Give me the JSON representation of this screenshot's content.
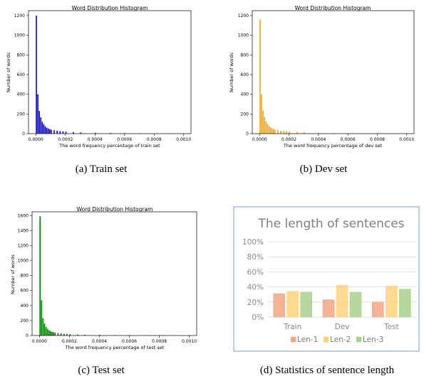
{
  "histograms": [
    {
      "title": "Word Distribution Histogram",
      "xlabel": "The word frequency percentage of train set",
      "ylabel": "Number of words",
      "caption": "(a)  Train set",
      "color": "#0000ff",
      "xticks": [
        "0.0000",
        "0.0002",
        "0.0004",
        "0.0006",
        "0.0008",
        "0.0010"
      ],
      "yticks": [
        "0",
        "200",
        "400",
        "600",
        "800",
        "1000",
        "1200"
      ]
    },
    {
      "title": "Word Distribution Histogram",
      "xlabel": "The word frequency percentage of dev set",
      "ylabel": "Number of words",
      "caption": "(b)  Dev set",
      "color": "#ffa500",
      "xticks": [
        "0.0000",
        "0.0002",
        "0.0004",
        "0.0006",
        "0.0008",
        "0.0010"
      ],
      "yticks": [
        "0",
        "200",
        "400",
        "600",
        "800",
        "1000",
        "1200"
      ]
    },
    {
      "title": "Word Distribution Histogram",
      "xlabel": "The word frequency percentage of test set",
      "ylabel": "Number of words",
      "caption": "(c)  Test set",
      "color": "#008000",
      "xticks": [
        "0.0000",
        "0.0002",
        "0.0004",
        "0.0006",
        "0.0008",
        "0.0010"
      ],
      "yticks": [
        "0",
        "200",
        "400",
        "600",
        "800",
        "1000",
        "1200",
        "1400",
        "1600"
      ]
    }
  ],
  "bar_panel": {
    "title": "The length of sentences",
    "caption": "(d)  Statistics of sentence length",
    "yticks": [
      "0%",
      "20%",
      "40%",
      "60%",
      "80%",
      "100%"
    ],
    "border_color": "#8faadc",
    "legend": [
      "Len-1",
      "Len-2",
      "Len-3"
    ]
  },
  "chart_data": [
    {
      "type": "bar",
      "title": "Word Distribution Histogram",
      "xlabel": "The word frequency percentage of train set",
      "ylabel": "Number of words",
      "xlim": [
        0,
        0.001
      ],
      "ylim": [
        0,
        1250
      ],
      "bin_width": 5e-06,
      "x": [
        0.0,
        1e-05,
        2e-05,
        3e-05,
        4e-05,
        5e-05,
        6e-05,
        7e-05,
        8e-05,
        9e-05,
        0.0001,
        0.00012,
        0.00014,
        0.00016,
        0.00018,
        0.0002,
        0.00025,
        0.0003,
        0.0004,
        0.0005,
        0.0006,
        0.0007,
        0.0008,
        0.0009,
        0.001
      ],
      "values": [
        1200,
        400,
        230,
        165,
        120,
        95,
        75,
        60,
        52,
        45,
        40,
        35,
        30,
        26,
        23,
        20,
        16,
        12,
        9,
        7,
        5,
        4,
        3,
        3,
        2
      ]
    },
    {
      "type": "bar",
      "title": "Word Distribution Histogram",
      "xlabel": "The word frequency percentage of dev set",
      "ylabel": "Number of words",
      "xlim": [
        0,
        0.001
      ],
      "ylim": [
        0,
        1250
      ],
      "bin_width": 5e-06,
      "x": [
        0.0,
        1e-05,
        2e-05,
        3e-05,
        4e-05,
        5e-05,
        6e-05,
        7e-05,
        8e-05,
        9e-05,
        0.0001,
        0.00012,
        0.00014,
        0.00016,
        0.00018,
        0.0002,
        0.00025,
        0.0003,
        0.0004,
        0.0005,
        0.0006,
        0.0007,
        0.0008,
        0.0009,
        0.001
      ],
      "values": [
        1160,
        400,
        235,
        170,
        125,
        100,
        80,
        65,
        55,
        48,
        42,
        36,
        31,
        27,
        24,
        21,
        17,
        13,
        10,
        7,
        5,
        4,
        3,
        3,
        2
      ]
    },
    {
      "type": "bar",
      "title": "Word Distribution Histogram",
      "xlabel": "The word frequency percentage of test set",
      "ylabel": "Number of words",
      "xlim": [
        0,
        0.001
      ],
      "ylim": [
        0,
        1650
      ],
      "bin_width": 5e-06,
      "x": [
        0.0,
        1e-05,
        2e-05,
        3e-05,
        4e-05,
        5e-05,
        6e-05,
        7e-05,
        8e-05,
        9e-05,
        0.0001,
        0.00012,
        0.00014,
        0.00016,
        0.00018,
        0.0002,
        0.00025,
        0.0003,
        0.0004,
        0.0005,
        0.0006,
        0.0007,
        0.0008,
        0.0009,
        0.001
      ],
      "values": [
        1590,
        470,
        230,
        160,
        115,
        90,
        70,
        58,
        50,
        44,
        38,
        33,
        28,
        24,
        21,
        18,
        14,
        11,
        8,
        6,
        5,
        4,
        3,
        2,
        2
      ]
    },
    {
      "type": "bar",
      "title": "The length of sentences",
      "categories": [
        "Train",
        "Dev",
        "Test"
      ],
      "series": [
        {
          "name": "Len-1",
          "color": "#f4a582",
          "values": [
            31,
            23,
            20
          ]
        },
        {
          "name": "Len-2",
          "color": "#ffd27a",
          "values": [
            34,
            42,
            41
          ]
        },
        {
          "name": "Len-3",
          "color": "#a9d18e",
          "values": [
            33,
            33,
            37
          ]
        }
      ],
      "unit": "%",
      "ylim": [
        0,
        100
      ],
      "legend": "bottom",
      "grid": true
    }
  ]
}
